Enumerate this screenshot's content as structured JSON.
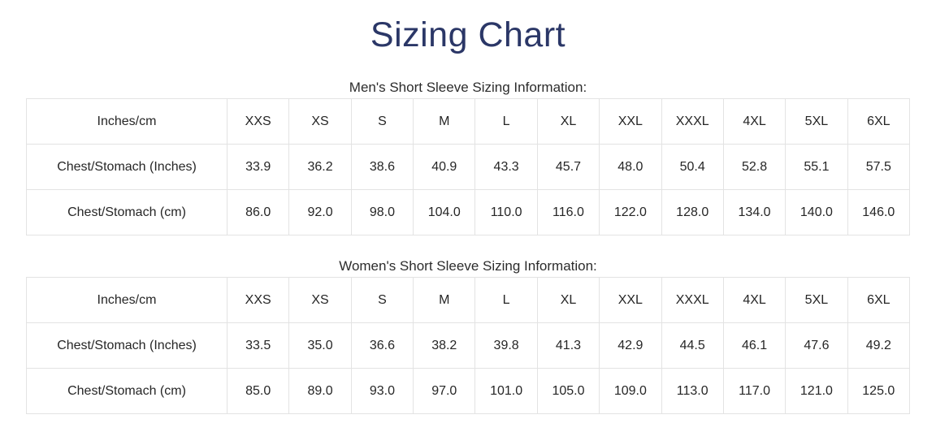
{
  "page": {
    "title": "Sizing Chart"
  },
  "colors": {
    "title": "#2b3767",
    "text": "#262626",
    "border": "#e3e3e3",
    "background": "#ffffff"
  },
  "tables": [
    {
      "heading": "Men's Short Sleeve Sizing Information:",
      "header_row": [
        "Inches/cm",
        "XXS",
        "XS",
        "S",
        "M",
        "L",
        "XL",
        "XXL",
        "XXXL",
        "4XL",
        "5XL",
        "6XL"
      ],
      "rows": [
        {
          "label": "Chest/Stomach (Inches)",
          "values": [
            "33.9",
            "36.2",
            "38.6",
            "40.9",
            "43.3",
            "45.7",
            "48.0",
            "50.4",
            "52.8",
            "55.1",
            "57.5"
          ]
        },
        {
          "label": "Chest/Stomach (cm)",
          "values": [
            "86.0",
            "92.0",
            "98.0",
            "104.0",
            "110.0",
            "116.0",
            "122.0",
            "128.0",
            "134.0",
            "140.0",
            "146.0"
          ]
        }
      ]
    },
    {
      "heading": "Women's Short Sleeve Sizing Information:",
      "header_row": [
        "Inches/cm",
        "XXS",
        "XS",
        "S",
        "M",
        "L",
        "XL",
        "XXL",
        "XXXL",
        "4XL",
        "5XL",
        "6XL"
      ],
      "rows": [
        {
          "label": "Chest/Stomach (Inches)",
          "values": [
            "33.5",
            "35.0",
            "36.6",
            "38.2",
            "39.8",
            "41.3",
            "42.9",
            "44.5",
            "46.1",
            "47.6",
            "49.2"
          ]
        },
        {
          "label": "Chest/Stomach (cm)",
          "values": [
            "85.0",
            "89.0",
            "93.0",
            "97.0",
            "101.0",
            "105.0",
            "109.0",
            "113.0",
            "117.0",
            "121.0",
            "125.0"
          ]
        }
      ]
    }
  ]
}
